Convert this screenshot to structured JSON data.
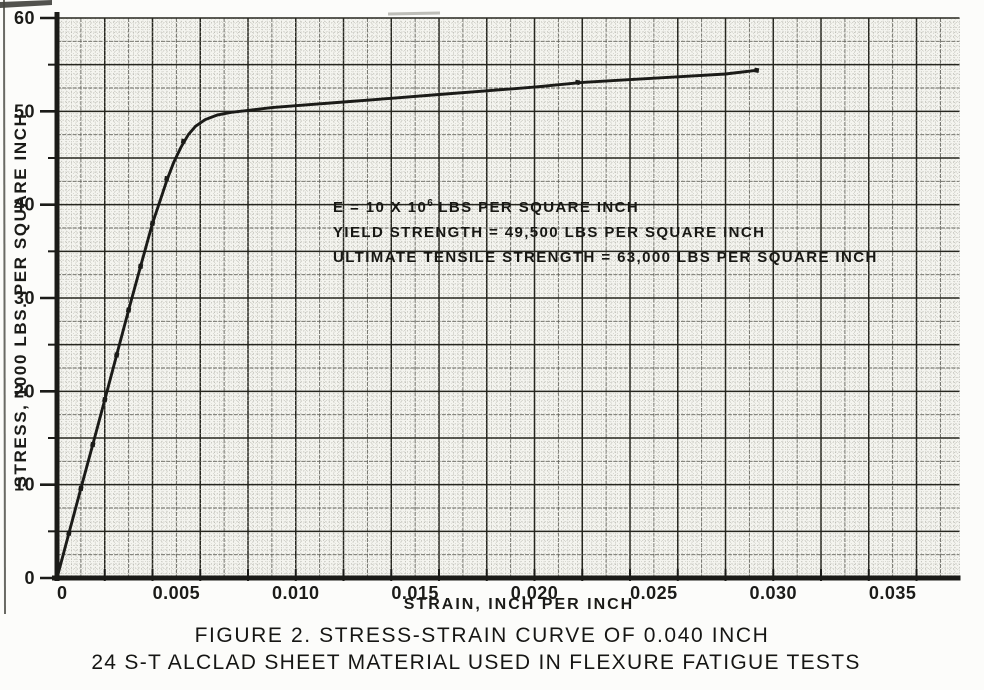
{
  "colors": {
    "ink": "#1b1b18",
    "grid_heavy": "#26261f",
    "grid_medium": "#63635c",
    "grid_fine": "#b2b2aa",
    "paper": "#f4f4ef",
    "page": "#fcfcfa"
  },
  "figure": {
    "y_axis_title": "STRESS, 1000 LBS. PER SQUARE INCH",
    "x_axis_title": "STRAIN, INCH PER INCH",
    "annotation": {
      "line1_pre": "E = 10 X 10",
      "line1_sup": "6",
      "line1_post": " LBS PER SQUARE INCH",
      "line2": "YIELD STRENGTH = 49,500 LBS PER SQUARE INCH",
      "line3": "ULTIMATE TENSILE STRENGTH = 63,000 LBS PER SQUARE INCH"
    },
    "caption_line1": "FIGURE 2.  STRESS-STRAIN CURVE  OF  0.040 INCH",
    "caption_line2": "24 S-T ALCLAD SHEET  MATERIAL  USED  IN FLEXURE  FATIGUE  TESTS"
  },
  "chart_data": {
    "type": "line",
    "title": "FIGURE 2. STRESS-STRAIN CURVE OF 0.040 INCH 24 S-T ALCLAD SHEET MATERIAL USED IN FLEXURE FATIGUE TESTS",
    "xlabel": "STRAIN, INCH PER INCH",
    "ylabel": "STRESS, 1000 LBS. PER SQUARE INCH",
    "xlim": [
      0,
      0.0378
    ],
    "ylim": [
      0,
      60
    ],
    "grid": {
      "x_fine": 0.0002,
      "x_medium": 0.001,
      "x_heavy": 0.002,
      "y_fine": 0.5,
      "y_medium": 2.5,
      "y_heavy": 5
    },
    "legend": "none",
    "x_ticks": [
      {
        "v": 0,
        "label": "0"
      },
      {
        "v": 0.005,
        "label": "0.005"
      },
      {
        "v": 0.01,
        "label": "0.010"
      },
      {
        "v": 0.015,
        "label": "0.015"
      },
      {
        "v": 0.02,
        "label": "0.020"
      },
      {
        "v": 0.025,
        "label": "0.025"
      },
      {
        "v": 0.03,
        "label": "0.030"
      },
      {
        "v": 0.035,
        "label": "0.035"
      }
    ],
    "y_ticks": [
      {
        "v": 0,
        "label": "0"
      },
      {
        "v": 10,
        "label": "10"
      },
      {
        "v": 20,
        "label": "20"
      },
      {
        "v": 30,
        "label": "30"
      },
      {
        "v": 40,
        "label": "40"
      },
      {
        "v": 50,
        "label": "50"
      },
      {
        "v": 60,
        "label": "60"
      }
    ],
    "annotations": [
      "E = 10 X 10^6 LBS PER SQUARE INCH",
      "YIELD STRENGTH = 49,500 LBS PER SQUARE INCH",
      "ULTIMATE TENSILE STRENGTH = 63,000 LBS PER SQUARE INCH"
    ],
    "series": [
      {
        "name": "stress-strain curve",
        "points": [
          [
            0,
            0
          ],
          [
            0.0005,
            4.8
          ],
          [
            0.001,
            9.6
          ],
          [
            0.0015,
            14.3
          ],
          [
            0.002,
            19.1
          ],
          [
            0.0025,
            23.9
          ],
          [
            0.003,
            28.7
          ],
          [
            0.0035,
            33.4
          ],
          [
            0.004,
            38.0
          ],
          [
            0.0043,
            40.3
          ],
          [
            0.0046,
            42.6
          ],
          [
            0.0049,
            44.6
          ],
          [
            0.0052,
            46.2
          ],
          [
            0.0055,
            47.5
          ],
          [
            0.0058,
            48.4
          ],
          [
            0.0062,
            49.1
          ],
          [
            0.0067,
            49.6
          ],
          [
            0.0073,
            49.9
          ],
          [
            0.008,
            50.1
          ],
          [
            0.009,
            50.4
          ],
          [
            0.01,
            50.6
          ],
          [
            0.012,
            51.0
          ],
          [
            0.014,
            51.4
          ],
          [
            0.016,
            51.8
          ],
          [
            0.018,
            52.2
          ],
          [
            0.02,
            52.6
          ],
          [
            0.022,
            53.1
          ],
          [
            0.024,
            53.4
          ],
          [
            0.026,
            53.7
          ],
          [
            0.028,
            54.0
          ],
          [
            0.0293,
            54.4
          ]
        ]
      }
    ],
    "markers": [
      [
        0.0005,
        4.8
      ],
      [
        0.001,
        9.6
      ],
      [
        0.0015,
        14.3
      ],
      [
        0.002,
        19.1
      ],
      [
        0.0025,
        23.9
      ],
      [
        0.003,
        28.7
      ],
      [
        0.0035,
        33.4
      ],
      [
        0.004,
        38.0
      ],
      [
        0.0046,
        42.8
      ],
      [
        0.0053,
        46.8
      ],
      [
        0.0218,
        53.1
      ],
      [
        0.0293,
        54.4
      ]
    ]
  }
}
